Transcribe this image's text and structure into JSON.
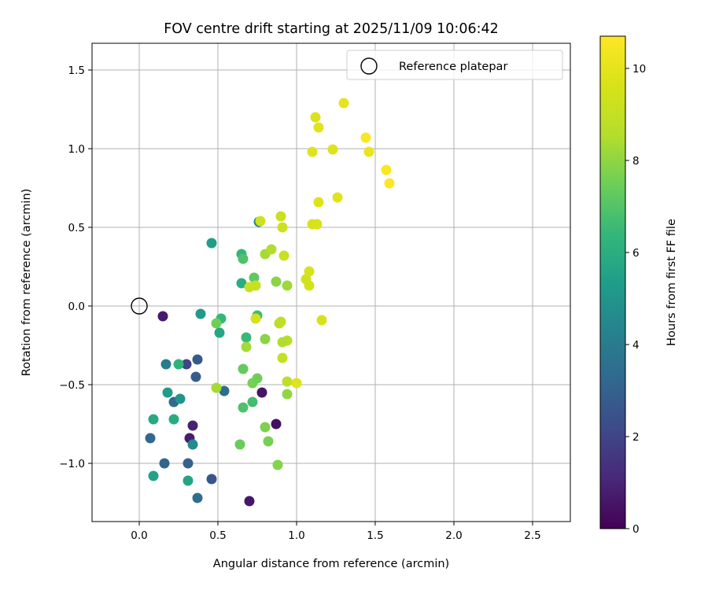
{
  "chart_data": {
    "type": "scatter",
    "title": "FOV centre drift starting at 2025/11/09 10:06:42",
    "xlabel": "Angular distance from reference (arcmin)",
    "ylabel": "Rotation from reference (arcmin)",
    "xlim": [
      -0.3,
      2.74
    ],
    "ylim": [
      -1.37,
      1.67
    ],
    "xticks": [
      0.0,
      0.5,
      1.0,
      1.5,
      2.0,
      2.5
    ],
    "xtick_labels": [
      "0.0",
      "0.5",
      "1.0",
      "1.5",
      "2.0",
      "2.5"
    ],
    "yticks": [
      -1.0,
      -0.5,
      0.0,
      0.5,
      1.0,
      1.5
    ],
    "ytick_labels": [
      "−1.0",
      "−0.5",
      "0.0",
      "0.5",
      "1.0",
      "1.5"
    ],
    "grid": true,
    "legend": {
      "position": "top-right",
      "entries": [
        "Reference platepar"
      ]
    },
    "reference_point": {
      "x": 0.0,
      "y": 0.0,
      "marker": "open-circle",
      "label": "Reference platepar"
    },
    "colorbar": {
      "label": "Hours from first FF file",
      "colormap": "viridis",
      "range": [
        0,
        10.7
      ],
      "ticks": [
        0,
        2,
        4,
        6,
        8,
        10
      ],
      "tick_labels": [
        "0",
        "2",
        "4",
        "6",
        "8",
        "10"
      ]
    },
    "series": [
      {
        "name": "FOV drift samples",
        "points": [
          [
            0.15,
            -0.065,
            0.7
          ],
          [
            0.7,
            -1.24,
            0.6
          ],
          [
            0.78,
            -0.55,
            0.5
          ],
          [
            0.87,
            -0.75,
            0.4
          ],
          [
            0.32,
            -0.84,
            0.8
          ],
          [
            0.34,
            -0.76,
            0.9
          ],
          [
            0.3,
            -0.37,
            2.0
          ],
          [
            0.37,
            -0.34,
            2.7
          ],
          [
            0.36,
            -0.45,
            2.8
          ],
          [
            0.31,
            -1.0,
            3.0
          ],
          [
            0.16,
            -1.0,
            3.1
          ],
          [
            0.07,
            -0.84,
            3.2
          ],
          [
            0.22,
            -0.61,
            3.3
          ],
          [
            0.46,
            -1.1,
            2.6
          ],
          [
            0.37,
            -1.22,
            3.5
          ],
          [
            0.54,
            -0.54,
            3.4
          ],
          [
            0.17,
            -0.37,
            4.0
          ],
          [
            0.34,
            -0.88,
            4.6
          ],
          [
            0.26,
            -0.59,
            5.0
          ],
          [
            0.18,
            -0.55,
            5.3
          ],
          [
            0.09,
            -1.08,
            5.5
          ],
          [
            0.31,
            -1.11,
            5.6
          ],
          [
            0.09,
            -0.72,
            5.8
          ],
          [
            0.22,
            -0.72,
            5.9
          ],
          [
            0.25,
            -0.37,
            6.2
          ],
          [
            0.39,
            -0.05,
            5.2
          ],
          [
            0.46,
            0.4,
            5.4
          ],
          [
            0.51,
            -0.17,
            5.7
          ],
          [
            0.52,
            -0.08,
            6.4
          ],
          [
            0.76,
            0.535,
            4.5
          ],
          [
            0.65,
            0.33,
            6.3
          ],
          [
            0.65,
            0.145,
            6.0
          ],
          [
            0.68,
            -0.2,
            6.5
          ],
          [
            0.75,
            -0.06,
            6.6
          ],
          [
            0.66,
            0.3,
            6.9
          ],
          [
            0.73,
            0.18,
            7.2
          ],
          [
            0.72,
            -0.61,
            6.7
          ],
          [
            0.66,
            -0.645,
            6.9
          ],
          [
            0.66,
            -0.4,
            7.3
          ],
          [
            0.64,
            -0.88,
            7.4
          ],
          [
            0.49,
            -0.11,
            7.5
          ],
          [
            0.72,
            -0.49,
            7.6
          ],
          [
            0.75,
            -0.46,
            7.5
          ],
          [
            0.82,
            -0.86,
            7.6
          ],
          [
            0.8,
            -0.77,
            7.7
          ],
          [
            0.88,
            -1.01,
            7.8
          ],
          [
            0.8,
            -0.21,
            7.9
          ],
          [
            0.87,
            0.155,
            7.9
          ],
          [
            0.94,
            -0.56,
            8.0
          ],
          [
            0.94,
            0.13,
            8.2
          ],
          [
            0.68,
            -0.26,
            8.3
          ],
          [
            0.8,
            0.33,
            8.3
          ],
          [
            0.84,
            0.36,
            8.5
          ],
          [
            0.94,
            -0.22,
            8.6
          ],
          [
            0.91,
            -0.23,
            8.5
          ],
          [
            0.89,
            -0.11,
            8.7
          ],
          [
            0.9,
            -0.1,
            8.8
          ],
          [
            0.94,
            -0.48,
            8.8
          ],
          [
            0.91,
            -0.33,
            9.0
          ],
          [
            0.74,
            0.13,
            9.0
          ],
          [
            0.7,
            0.12,
            9.1
          ],
          [
            0.92,
            0.32,
            9.2
          ],
          [
            0.9,
            0.57,
            9.2
          ],
          [
            0.91,
            0.5,
            9.3
          ],
          [
            0.77,
            0.54,
            9.4
          ],
          [
            0.74,
            -0.08,
            9.5
          ],
          [
            0.49,
            -0.52,
            8.3
          ],
          [
            1.06,
            0.17,
            9.4
          ],
          [
            1.08,
            0.13,
            9.5
          ],
          [
            1.08,
            0.22,
            9.6
          ],
          [
            1.1,
            0.52,
            9.6
          ],
          [
            1.13,
            0.52,
            9.7
          ],
          [
            1.14,
            0.66,
            9.8
          ],
          [
            1.16,
            -0.09,
            9.6
          ],
          [
            1.0,
            -0.49,
            9.8
          ],
          [
            1.1,
            0.98,
            9.8
          ],
          [
            1.12,
            1.2,
            9.7
          ],
          [
            1.14,
            1.135,
            9.9
          ],
          [
            1.23,
            0.995,
            9.8
          ],
          [
            1.26,
            0.69,
            9.9
          ],
          [
            1.3,
            1.29,
            10.0
          ],
          [
            1.46,
            0.98,
            10.1
          ],
          [
            1.44,
            1.07,
            10.6
          ],
          [
            1.57,
            0.865,
            10.6
          ],
          [
            1.59,
            0.78,
            10.7
          ]
        ]
      }
    ]
  }
}
